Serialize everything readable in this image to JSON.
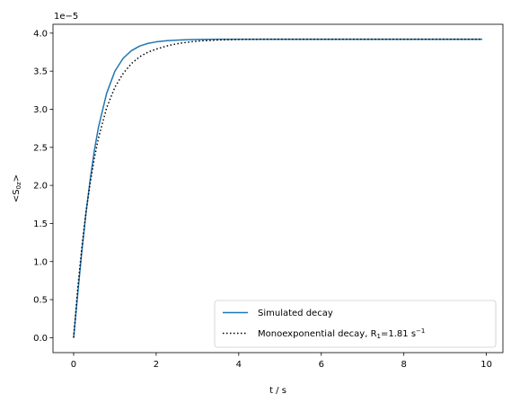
{
  "chart_data": {
    "type": "line",
    "xlabel": "t / s",
    "ylabel": "<S",
    "ylabel_sub": "0z",
    "ylabel_close": ">",
    "offset_label": "1e−5",
    "xlim": [
      -0.5,
      10.4
    ],
    "ylim": [
      -0.196,
      4.116
    ],
    "xticks": [
      0,
      2,
      4,
      6,
      8,
      10
    ],
    "xtick_labels": [
      "0",
      "2",
      "4",
      "6",
      "8",
      "10"
    ],
    "yticks": [
      0.0,
      0.5,
      1.0,
      1.5,
      2.0,
      2.5,
      3.0,
      3.5,
      4.0
    ],
    "ytick_labels": [
      "0.0",
      "0.5",
      "1.0",
      "1.5",
      "2.0",
      "2.5",
      "3.0",
      "3.5",
      "4.0"
    ],
    "grid": false,
    "legend_position": "lower-right",
    "series": [
      {
        "name": "Simulated decay",
        "color": "#1f77b4",
        "style": "solid",
        "x": [
          0,
          0.1,
          0.2,
          0.3,
          0.4,
          0.5,
          0.6,
          0.8,
          1.0,
          1.2,
          1.4,
          1.6,
          1.8,
          2.0,
          2.25,
          2.5,
          2.75,
          3.0,
          3.5,
          4.0,
          4.5,
          5.0,
          6.0,
          7.0,
          8.0,
          9.0,
          9.9
        ],
        "y": [
          0.0,
          0.58,
          1.14,
          1.64,
          2.07,
          2.45,
          2.76,
          3.21,
          3.5,
          3.67,
          3.77,
          3.83,
          3.865,
          3.885,
          3.9,
          3.908,
          3.913,
          3.916,
          3.919,
          3.92,
          3.92,
          3.92,
          3.92,
          3.92,
          3.92,
          3.92,
          3.92
        ]
      },
      {
        "name": "Monoexponential decay, R",
        "name_sub": "1",
        "name_value": "=1.81 s",
        "name_sup": "−1",
        "color": "#000000",
        "style": "dotted",
        "x": [
          0,
          0.1,
          0.2,
          0.3,
          0.4,
          0.5,
          0.6,
          0.8,
          1.0,
          1.2,
          1.4,
          1.6,
          1.8,
          2.0,
          2.25,
          2.5,
          2.75,
          3.0,
          3.5,
          4.0,
          4.5,
          5.0,
          6.0,
          7.0,
          8.0,
          9.0,
          9.9
        ],
        "y": [
          0.0,
          0.65,
          1.19,
          1.65,
          2.03,
          2.35,
          2.62,
          3.02,
          3.29,
          3.47,
          3.6,
          3.69,
          3.75,
          3.79,
          3.83,
          3.86,
          3.88,
          3.895,
          3.91,
          3.917,
          3.919,
          3.92,
          3.92,
          3.92,
          3.92,
          3.92,
          3.92
        ]
      }
    ]
  }
}
